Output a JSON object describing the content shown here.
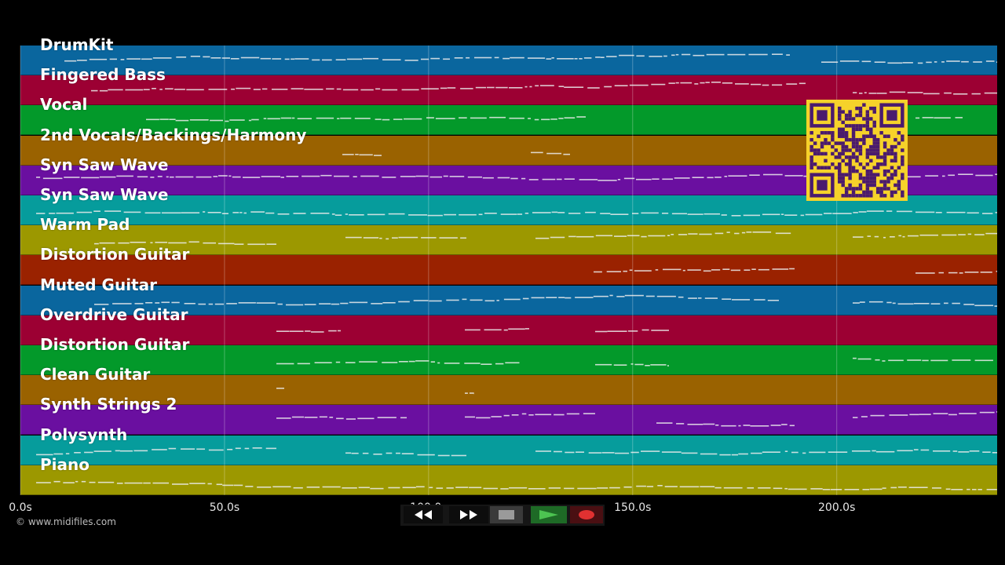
{
  "tracks": [
    {
      "name": "DrumKit",
      "color": "#0a669e"
    },
    {
      "name": "Fingered Bass",
      "color": "#9c0033"
    },
    {
      "name": "Vocal",
      "color": "#03992a"
    },
    {
      "name": "2nd Vocals/Backings/Harmony",
      "color": "#9a6200"
    },
    {
      "name": "Syn Saw Wave",
      "color": "#6a0fa0"
    },
    {
      "name": "Syn Saw Wave",
      "color": "#069c9c"
    },
    {
      "name": "Warm Pad",
      "color": "#9c9800"
    },
    {
      "name": "Distortion Guitar",
      "color": "#9a2200"
    },
    {
      "name": "Muted Guitar",
      "color": "#0a669e"
    },
    {
      "name": "Overdrive Guitar",
      "color": "#9c0033"
    },
    {
      "name": "Distortion Guitar",
      "color": "#03992a"
    },
    {
      "name": "Clean Guitar",
      "color": "#9a6200"
    },
    {
      "name": "Synth Strings 2",
      "color": "#6a0fa0"
    },
    {
      "name": "Polysynth",
      "color": "#069c9c"
    },
    {
      "name": "Piano",
      "color": "#9c9800"
    }
  ],
  "timeline": {
    "ticks": [
      {
        "label": "0.0s",
        "seconds": 0
      },
      {
        "label": "50.0s",
        "seconds": 50
      },
      {
        "label": "100.0s",
        "seconds": 100
      },
      {
        "label": "150.0s",
        "seconds": 150
      },
      {
        "label": "200.0s",
        "seconds": 200
      }
    ],
    "seconds_per_view": 239.3
  },
  "copyright": "© www.midifiles.com",
  "transport": {
    "rewind": "rewind-icon",
    "fast_forward": "fast-forward-icon",
    "stop": "stop-icon",
    "play": "play-icon",
    "record": "record-icon"
  },
  "qr_code": "qr-code-icon"
}
